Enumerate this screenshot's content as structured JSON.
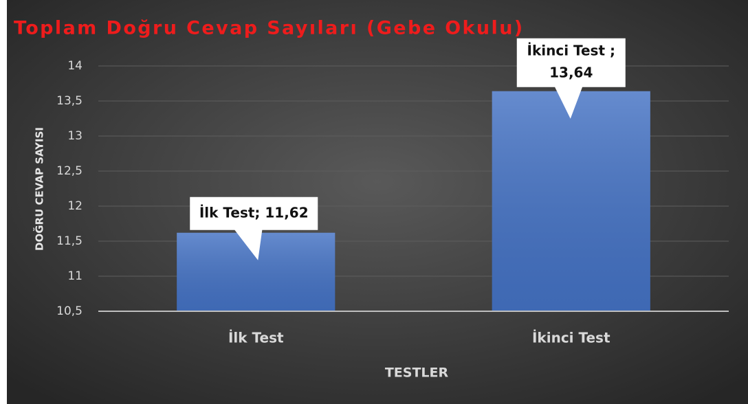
{
  "chart_data": {
    "type": "bar",
    "title": "Toplam Doğru Cevap Sayıları (Gebe Okulu)",
    "x_label": "TESTLER",
    "y_label": "DOĞRU CEVAP SAYISI",
    "categories": [
      "İlk Test",
      "İkinci Test"
    ],
    "values": [
      11.62,
      13.64
    ],
    "value_labels": [
      "İlk Test; 11,62",
      "İkinci Test ; 13,64"
    ],
    "color": "#4472c4",
    "ylim": [
      10.5,
      14
    ],
    "yticks": [
      {
        "value": 10.5,
        "label": "10,5"
      },
      11,
      {
        "value": 11.5,
        "label": "11,5"
      },
      12,
      {
        "value": 12.5,
        "label": "12,5"
      },
      13,
      {
        "value": 13.5,
        "label": "13,5"
      },
      14
    ],
    "grid": true
  }
}
